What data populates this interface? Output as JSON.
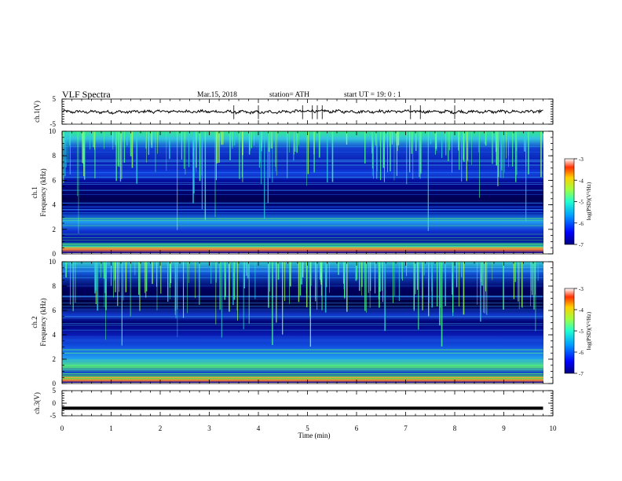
{
  "header": {
    "title": "VLF  Spectra",
    "date": "Mar.15, 2018",
    "station": "station= ATH",
    "start": "start  UT  =   19: 0  : 1"
  },
  "colorbar": {
    "label": "log(PSD)(V²/Hz)",
    "ticks": [
      "-3",
      "-4",
      "-5",
      "-6",
      "-7"
    ]
  },
  "chart_data": [
    {
      "type": "line",
      "ylabel": "ch.1(V)",
      "ylim": [
        -5,
        5
      ],
      "yticks": [
        "5",
        "-5"
      ],
      "xlim": [
        0,
        10
      ],
      "description_of_series": "waveform amplitude near 0 V over ~9.8 min",
      "x": [
        0,
        1,
        2,
        3,
        4,
        5,
        6,
        7,
        8,
        9,
        9.8
      ],
      "values": [
        0,
        -0.2,
        0.1,
        0,
        -0.3,
        0.2,
        0,
        0.1,
        -0.1,
        0,
        0
      ]
    },
    {
      "type": "heatmap",
      "ylabel_top": "ch.1",
      "ylabel": "Frequency  (kHz)",
      "ylim": [
        0,
        10
      ],
      "yticks": [
        "10",
        "8",
        "6",
        "4",
        "2",
        "0"
      ],
      "xlim": [
        0,
        10
      ],
      "data_end_min": 9.8,
      "colormap": "jet",
      "color_range": [
        -7,
        -3
      ]
    },
    {
      "type": "heatmap",
      "ylabel_top": "ch.2",
      "ylabel": "Frequency  (kHz)",
      "ylim": [
        0,
        10
      ],
      "yticks": [
        "10",
        "8",
        "6",
        "4",
        "2",
        "0"
      ],
      "xlim": [
        0,
        10
      ],
      "data_end_min": 9.8,
      "colormap": "jet",
      "color_range": [
        -7,
        -3
      ]
    },
    {
      "type": "line",
      "ylabel": "ch.3(V)",
      "ylim": [
        -5,
        5
      ],
      "yticks": [
        "5",
        "0",
        "-5"
      ],
      "xlabel": "Time  (min)",
      "xlim": [
        0,
        10
      ],
      "xticks": [
        "0",
        "1",
        "2",
        "3",
        "4",
        "5",
        "6",
        "7",
        "8",
        "9",
        "10"
      ],
      "x": [
        0,
        9.8
      ],
      "values": [
        -2,
        -2
      ]
    }
  ]
}
